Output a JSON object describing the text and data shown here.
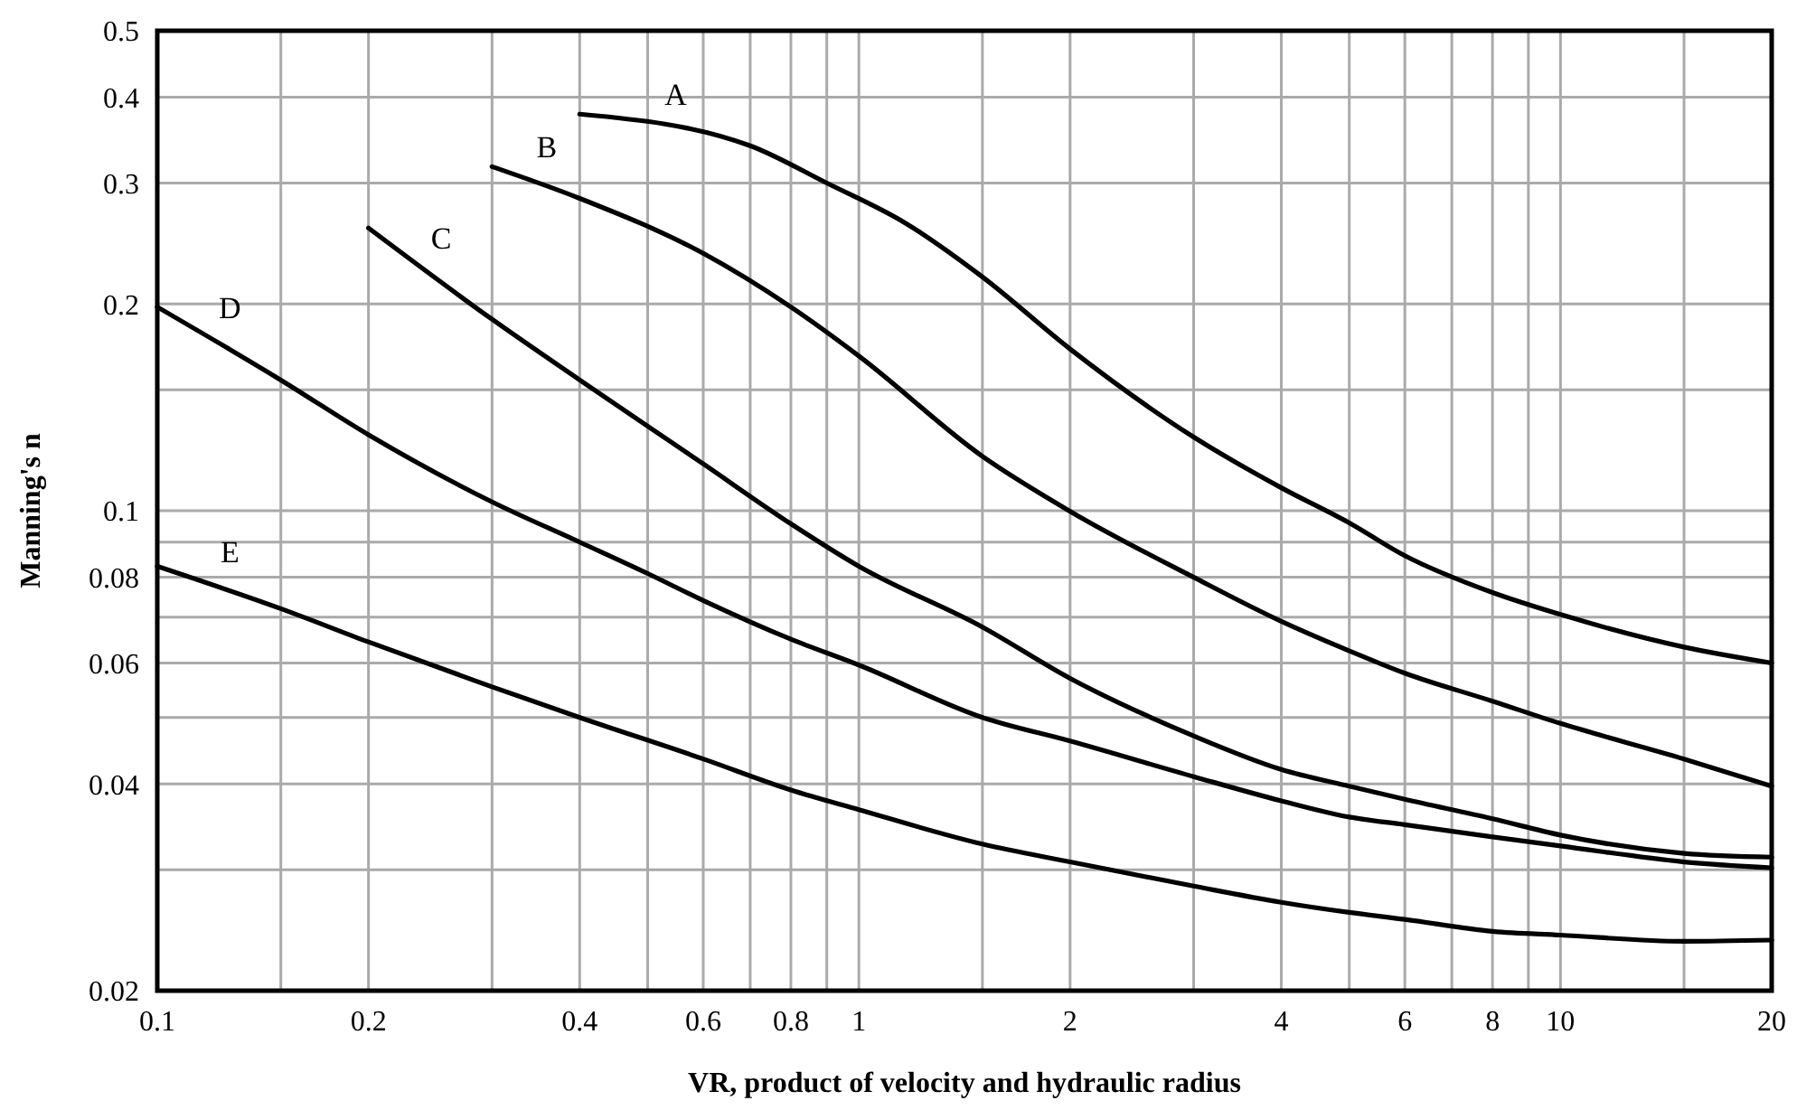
{
  "chart_data": {
    "type": "line",
    "xlabel": "VR, product of velocity and hydraulic radius",
    "ylabel": "Manning's n",
    "log": "xy",
    "grid": true,
    "marker": "none",
    "line_style": "solid",
    "xlim": [
      0.1,
      20
    ],
    "ylim": [
      0.02,
      0.5
    ],
    "xticks": [
      0.1,
      {
        "value": 0.15,
        "label": null
      },
      0.2,
      {
        "value": 0.3,
        "label": null
      },
      0.4,
      {
        "value": 0.5,
        "label": null
      },
      0.6,
      {
        "value": 0.7,
        "label": null
      },
      0.8,
      {
        "value": 0.9,
        "label": null
      },
      1,
      {
        "value": 1.5,
        "label": null
      },
      2,
      {
        "value": 3,
        "label": null
      },
      4,
      {
        "value": 5,
        "label": null
      },
      6,
      {
        "value": 7,
        "label": null
      },
      8,
      {
        "value": 9,
        "label": null
      },
      10,
      {
        "value": 15,
        "label": null
      },
      20
    ],
    "yticks": [
      0.02,
      {
        "value": 0.03,
        "label": null
      },
      0.04,
      {
        "value": 0.05,
        "label": null
      },
      0.06,
      {
        "value": 0.07,
        "label": null
      },
      0.08,
      {
        "value": 0.09,
        "label": null
      },
      0.1,
      {
        "value": 0.15,
        "label": null
      },
      0.2,
      0.3,
      0.4,
      0.5
    ],
    "series": [
      {
        "name": "A",
        "color": "#000000",
        "x": [
          0.4,
          0.7,
          0.9,
          1.16,
          1.5,
          2,
          3,
          4,
          5,
          6,
          8,
          10,
          15,
          20
        ],
        "values": [
          0.378,
          0.34,
          0.3,
          0.263,
          0.219,
          0.172,
          0.128,
          0.108,
          0.096,
          0.086,
          0.076,
          0.0706,
          0.0633,
          0.06
        ]
      },
      {
        "name": "B",
        "color": "#000000",
        "x": [
          0.3,
          0.4,
          0.6,
          0.8,
          1,
          1.5,
          2,
          3,
          4,
          5,
          6,
          8,
          10,
          15,
          20
        ],
        "values": [
          0.317,
          0.285,
          0.237,
          0.198,
          0.168,
          0.12,
          0.0998,
          0.08,
          0.069,
          0.0625,
          0.058,
          0.0528,
          0.049,
          0.0435,
          0.0397
        ]
      },
      {
        "name": "C",
        "color": "#000000",
        "x": [
          0.2,
          0.3,
          0.4,
          0.6,
          0.8,
          1,
          1.5,
          2,
          3,
          4,
          5,
          6,
          8,
          10,
          15,
          20
        ],
        "values": [
          0.258,
          0.19,
          0.155,
          0.117,
          0.0957,
          0.083,
          0.0677,
          0.057,
          0.047,
          0.042,
          0.0397,
          0.038,
          0.0356,
          0.0337,
          0.0317,
          0.0313
        ]
      },
      {
        "name": "D",
        "color": "#000000",
        "x": [
          0.1,
          0.15,
          0.2,
          0.3,
          0.4,
          0.5,
          0.6,
          0.8,
          1,
          1.5,
          2,
          3,
          4,
          5,
          6,
          8,
          10,
          15,
          20
        ],
        "values": [
          0.198,
          0.155,
          0.129,
          0.103,
          0.09,
          0.081,
          0.074,
          0.065,
          0.0596,
          0.05,
          0.0462,
          0.041,
          0.0378,
          0.0358,
          0.0349,
          0.0335,
          0.0325,
          0.0308,
          0.0302
        ]
      },
      {
        "name": "E",
        "color": "#000000",
        "x": [
          0.1,
          0.15,
          0.2,
          0.3,
          0.4,
          0.6,
          0.8,
          1,
          1.5,
          2,
          3,
          4,
          5,
          6,
          8,
          10,
          15,
          20
        ],
        "values": [
          0.083,
          0.072,
          0.0644,
          0.0554,
          0.05,
          0.0435,
          0.0392,
          0.0367,
          0.0327,
          0.0308,
          0.0284,
          0.0269,
          0.026,
          0.0254,
          0.0244,
          0.0241,
          0.0236,
          0.0237
        ]
      }
    ]
  }
}
